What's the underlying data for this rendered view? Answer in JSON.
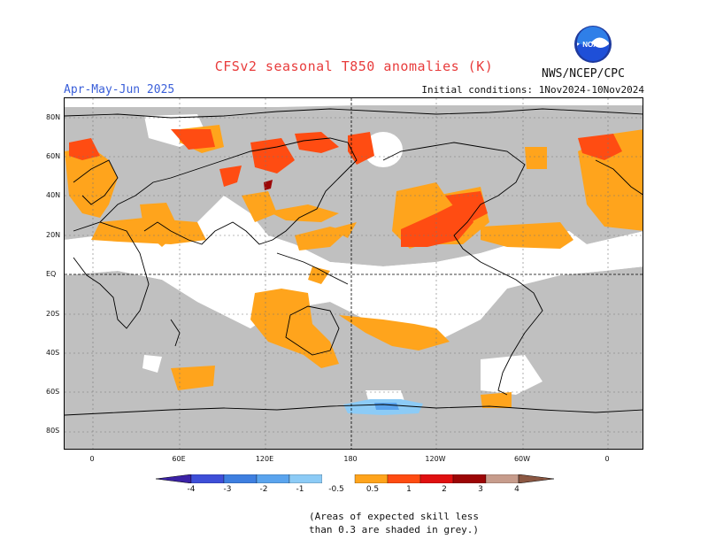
{
  "title": "CFSv2 seasonal T850 anomalies (K)",
  "period": "Apr-May-Jun 2025",
  "initial_conditions": "Initial conditions: 1Nov2024-10Nov2024",
  "agency": "NWS/NCEP/CPC",
  "logo_text": "NOAA",
  "lat_labels": [
    "80N",
    "60N",
    "40N",
    "20N",
    "EQ",
    "20S",
    "40S",
    "60S",
    "80S"
  ],
  "lon_labels": [
    "0",
    "60E",
    "120E",
    "180",
    "120W",
    "60W",
    "0"
  ],
  "colorbar": {
    "labels": [
      "-4",
      "-3",
      "-2",
      "-1",
      "-0.5",
      "0.5",
      "1",
      "2",
      "3",
      "4"
    ],
    "colors": [
      "#3b22a6",
      "#3e4fd8",
      "#3e7fe0",
      "#5aa4ee",
      "#8ccbf6",
      "#ffffff",
      "#ffa41c",
      "#ff4c12",
      "#e01010",
      "#9c0606",
      "#c79c8c",
      "#8b5742"
    ]
  },
  "note_line1": "(Areas of expected skill less",
  "note_line2": "than 0.3 are shaded in grey.)",
  "colors": {
    "skill_grey": "#c0c0c0",
    "orange": "#ffa41c",
    "red_orange": "#ff4c12",
    "dark_red": "#9c0606",
    "light_blue": "#8ccbf6",
    "blue": "#5aa4ee"
  }
}
